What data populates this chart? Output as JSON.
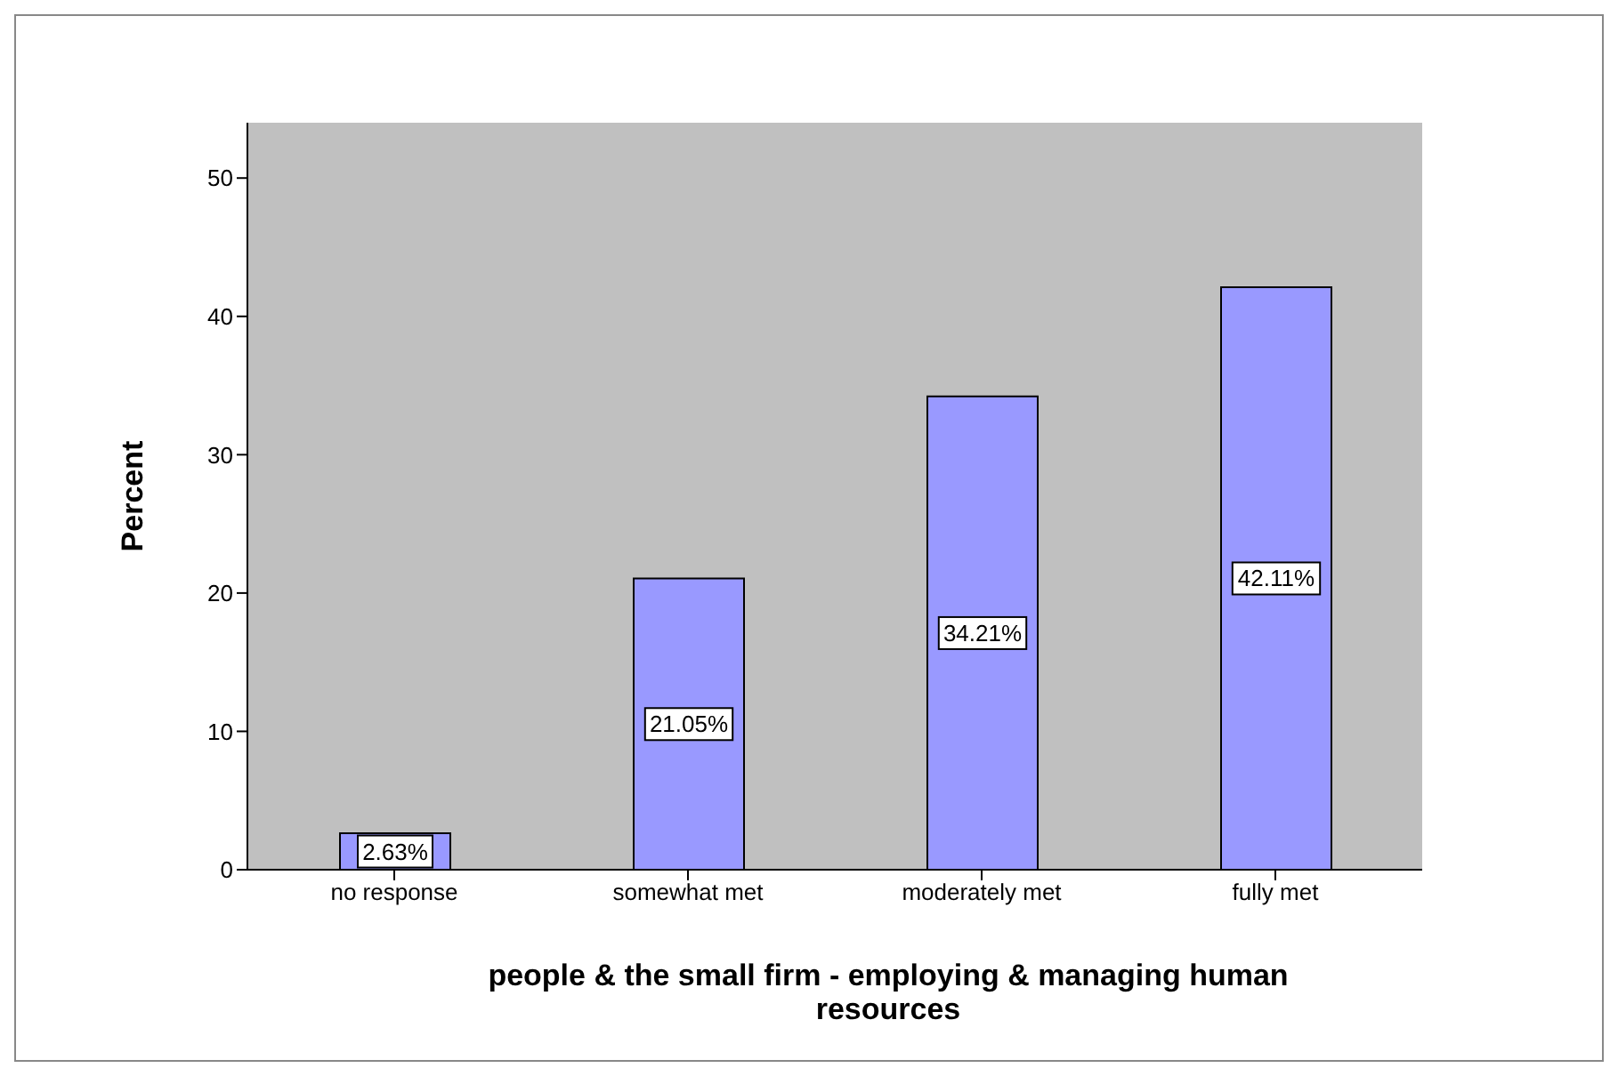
{
  "chart_data": {
    "type": "bar",
    "xlabel": "people & the small firm - employing & managing human resources",
    "ylabel": "Percent",
    "categories": [
      "no response",
      "somewhat met",
      "moderately met",
      "fully met"
    ],
    "values": [
      2.63,
      21.05,
      34.21,
      42.11
    ],
    "color": "#9999ff",
    "value_labels": [
      "2.63%",
      "21.05%",
      "34.21%",
      "42.11%"
    ],
    "ylim": [
      0,
      54
    ],
    "yticks": [
      0,
      10,
      20,
      30,
      40,
      50
    ],
    "grid": false
  }
}
